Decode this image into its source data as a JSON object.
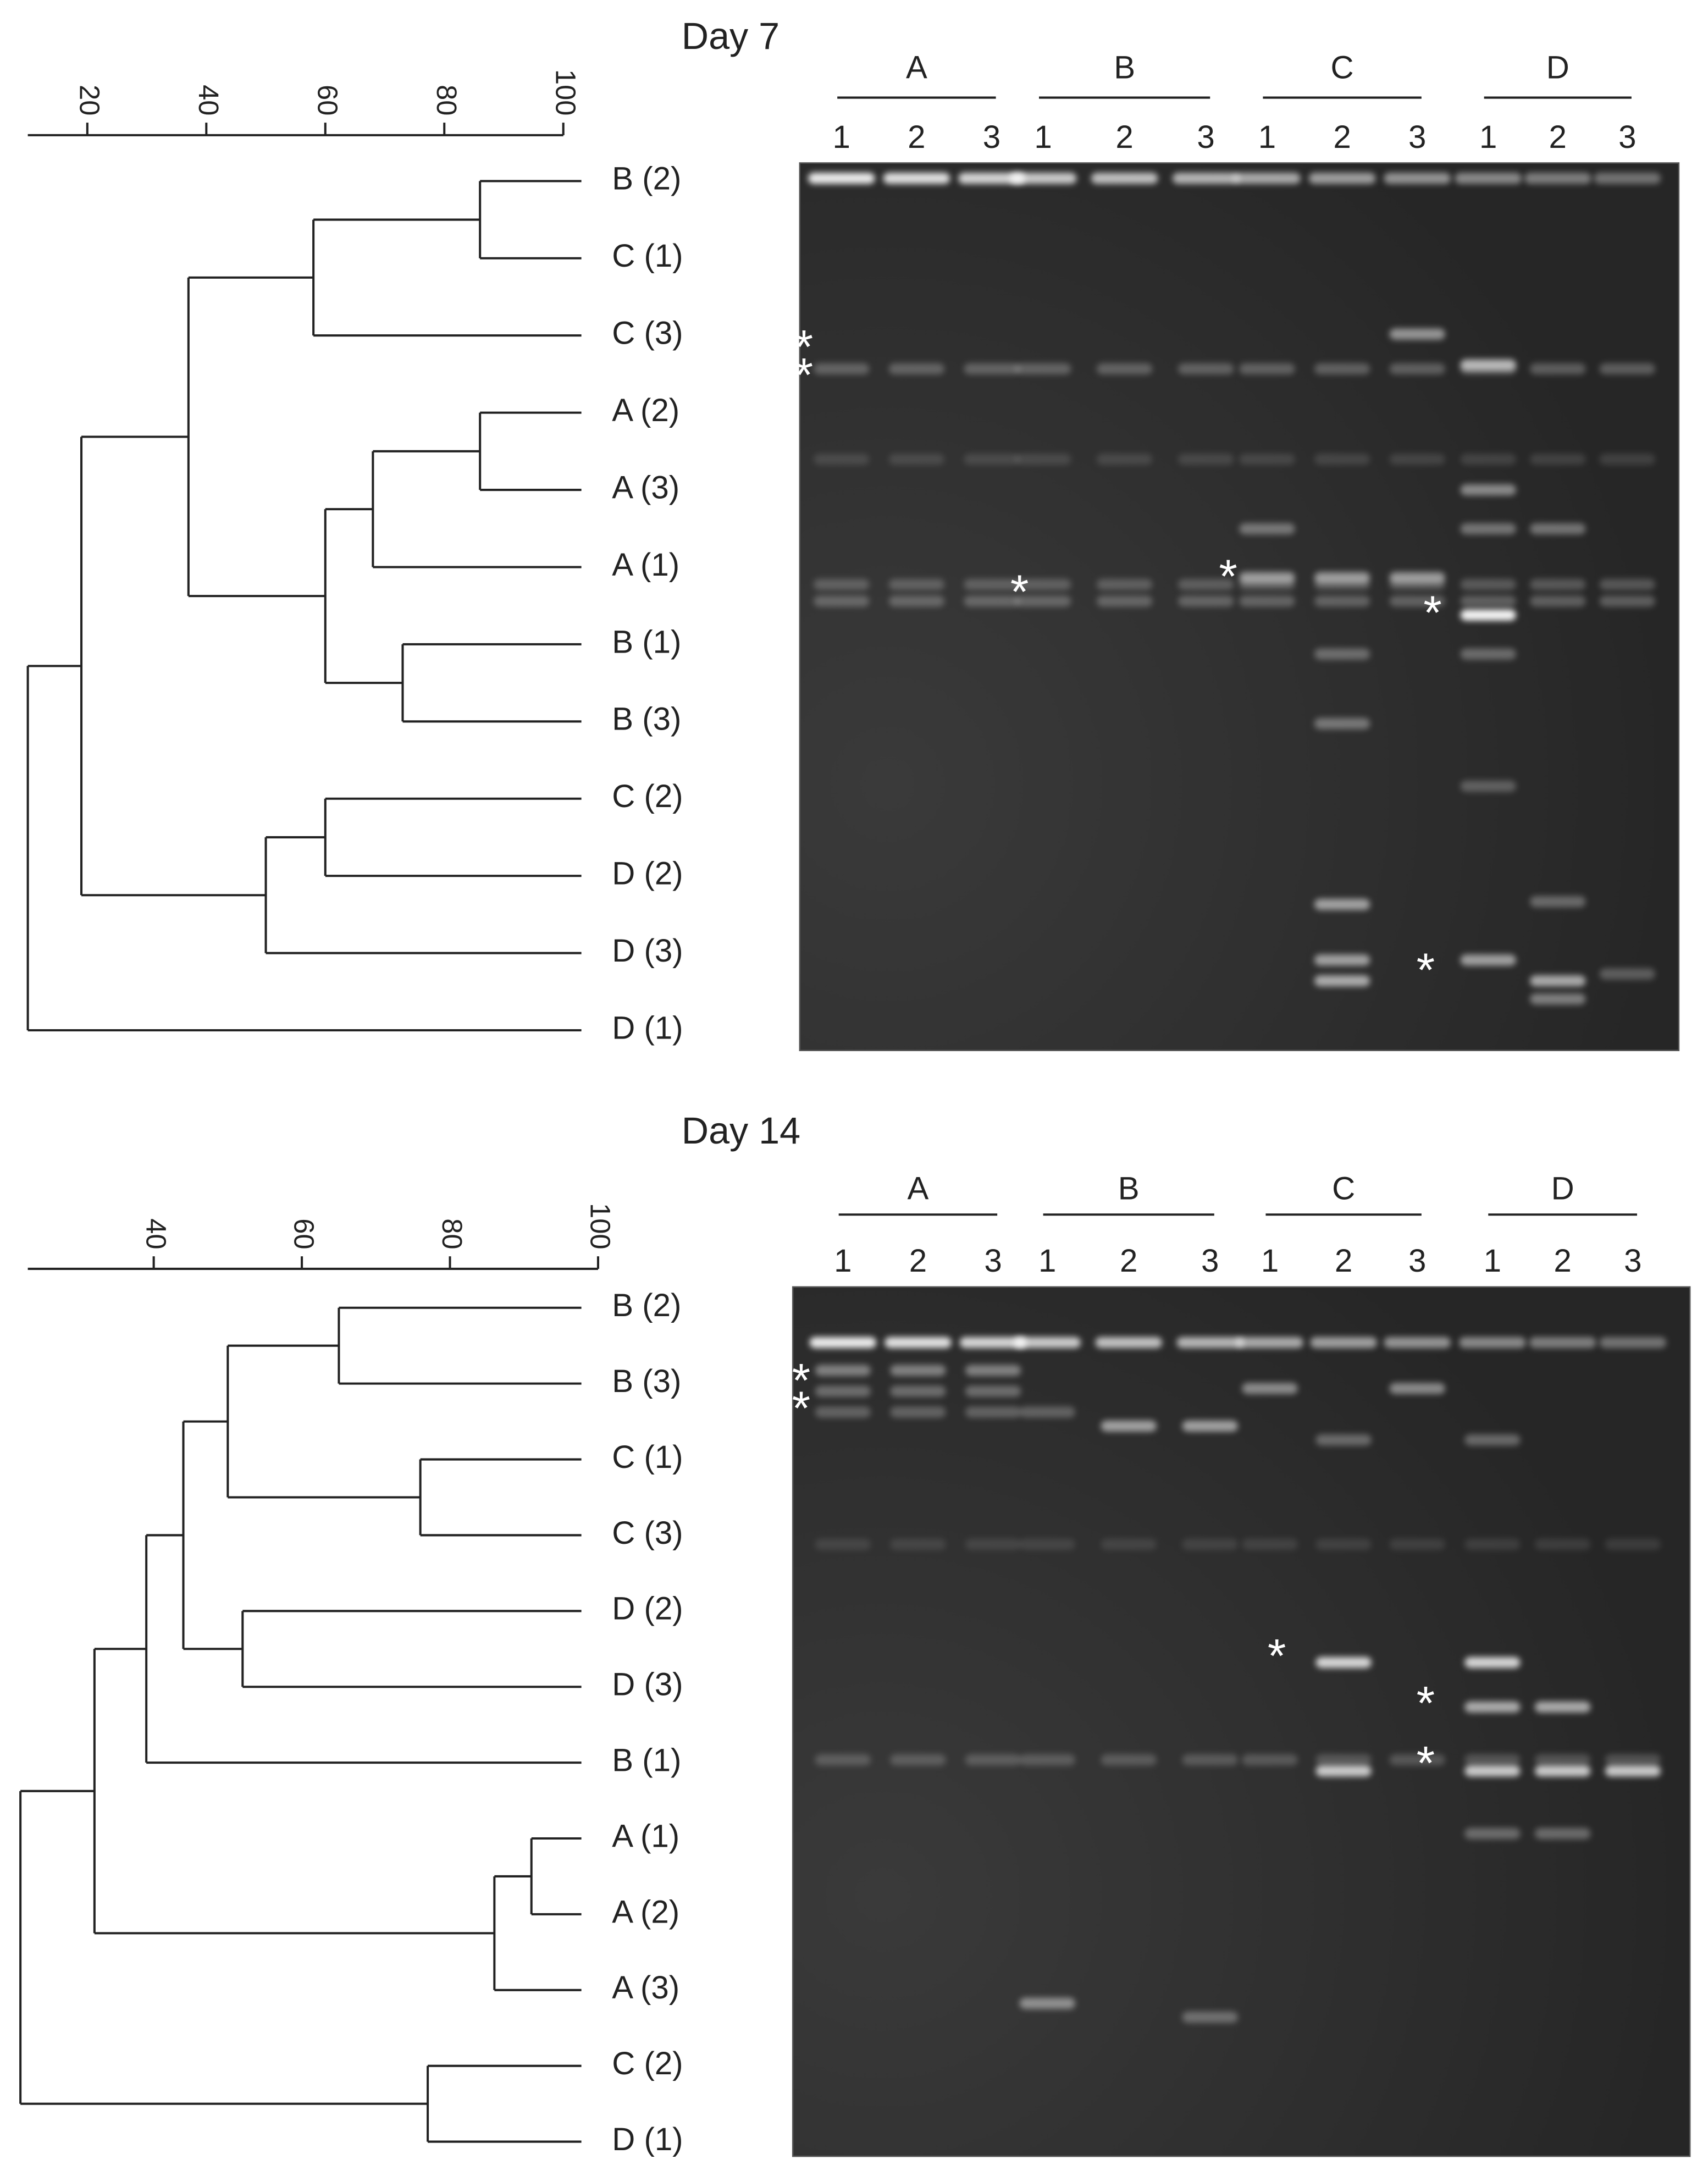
{
  "panels": [
    {
      "title": "Day 7",
      "scale": {
        "xlim": [
          10,
          100
        ],
        "ticks": [
          20,
          40,
          60,
          80,
          100
        ]
      },
      "tree": {
        "similarity": 10,
        "children": [
          {
            "similarity": 19,
            "children": [
              {
                "similarity": 37,
                "children": [
                  {
                    "similarity": 58,
                    "children": [
                      {
                        "similarity": 86,
                        "children": [
                          {
                            "label": "B (2)"
                          },
                          {
                            "label": "C (1)"
                          }
                        ]
                      },
                      {
                        "label": "C (3)"
                      }
                    ]
                  },
                  {
                    "similarity": 60,
                    "children": [
                      {
                        "similarity": 68,
                        "children": [
                          {
                            "similarity": 86,
                            "children": [
                              {
                                "label": "A (2)"
                              },
                              {
                                "label": "A (3)"
                              }
                            ]
                          },
                          {
                            "label": "A (1)"
                          }
                        ]
                      },
                      {
                        "similarity": 73,
                        "children": [
                          {
                            "label": "B (1)"
                          },
                          {
                            "label": "B (3)"
                          }
                        ]
                      }
                    ]
                  }
                ]
              },
              {
                "similarity": 50,
                "children": [
                  {
                    "similarity": 60,
                    "children": [
                      {
                        "label": "C (2)"
                      },
                      {
                        "label": "D (2)"
                      }
                    ]
                  },
                  {
                    "label": "D (3)"
                  }
                ]
              }
            ]
          },
          {
            "label": "D (1)"
          }
        ]
      },
      "gel": {
        "groups": [
          {
            "label": "A",
            "lanes": [
              "1",
              "2",
              "3"
            ]
          },
          {
            "label": "B",
            "lanes": [
              "1",
              "2",
              "3"
            ]
          },
          {
            "label": "C",
            "lanes": [
              "1",
              "2",
              "3"
            ]
          },
          {
            "label": "D",
            "lanes": [
              "1",
              "2",
              "3"
            ]
          }
        ],
        "annotations": [
          "*",
          "*",
          "*",
          "*",
          "*",
          "*"
        ]
      }
    },
    {
      "title": "Day 14",
      "scale": {
        "xlim": [
          23,
          100
        ],
        "ticks": [
          40,
          60,
          80,
          100
        ]
      },
      "tree": {
        "similarity": 22,
        "children": [
          {
            "similarity": 32,
            "children": [
              {
                "similarity": 39,
                "children": [
                  {
                    "similarity": 44,
                    "children": [
                      {
                        "similarity": 50,
                        "children": [
                          {
                            "similarity": 65,
                            "children": [
                              {
                                "label": "B (2)"
                              },
                              {
                                "label": "B (3)"
                              }
                            ]
                          },
                          {
                            "similarity": 76,
                            "children": [
                              {
                                "label": "C (1)"
                              },
                              {
                                "label": "C (3)"
                              }
                            ]
                          }
                        ]
                      },
                      {
                        "similarity": 52,
                        "children": [
                          {
                            "label": "D (2)"
                          },
                          {
                            "label": "D (3)"
                          }
                        ]
                      }
                    ]
                  },
                  {
                    "label": "B (1)"
                  }
                ]
              },
              {
                "similarity": 86,
                "children": [
                  {
                    "similarity": 91,
                    "children": [
                      {
                        "label": "A (1)"
                      },
                      {
                        "label": "A (2)"
                      }
                    ]
                  },
                  {
                    "label": "A (3)"
                  }
                ]
              }
            ]
          },
          {
            "similarity": 77,
            "children": [
              {
                "label": "C (2)"
              },
              {
                "label": "D (1)"
              }
            ]
          }
        ]
      },
      "gel": {
        "groups": [
          {
            "label": "A",
            "lanes": [
              "1",
              "2",
              "3"
            ]
          },
          {
            "label": "B",
            "lanes": [
              "1",
              "2",
              "3"
            ]
          },
          {
            "label": "C",
            "lanes": [
              "1",
              "2",
              "3"
            ]
          },
          {
            "label": "D",
            "lanes": [
              "1",
              "2",
              "3"
            ]
          }
        ],
        "annotations": [
          "*",
          "*",
          "*",
          "*",
          "*"
        ]
      }
    }
  ]
}
